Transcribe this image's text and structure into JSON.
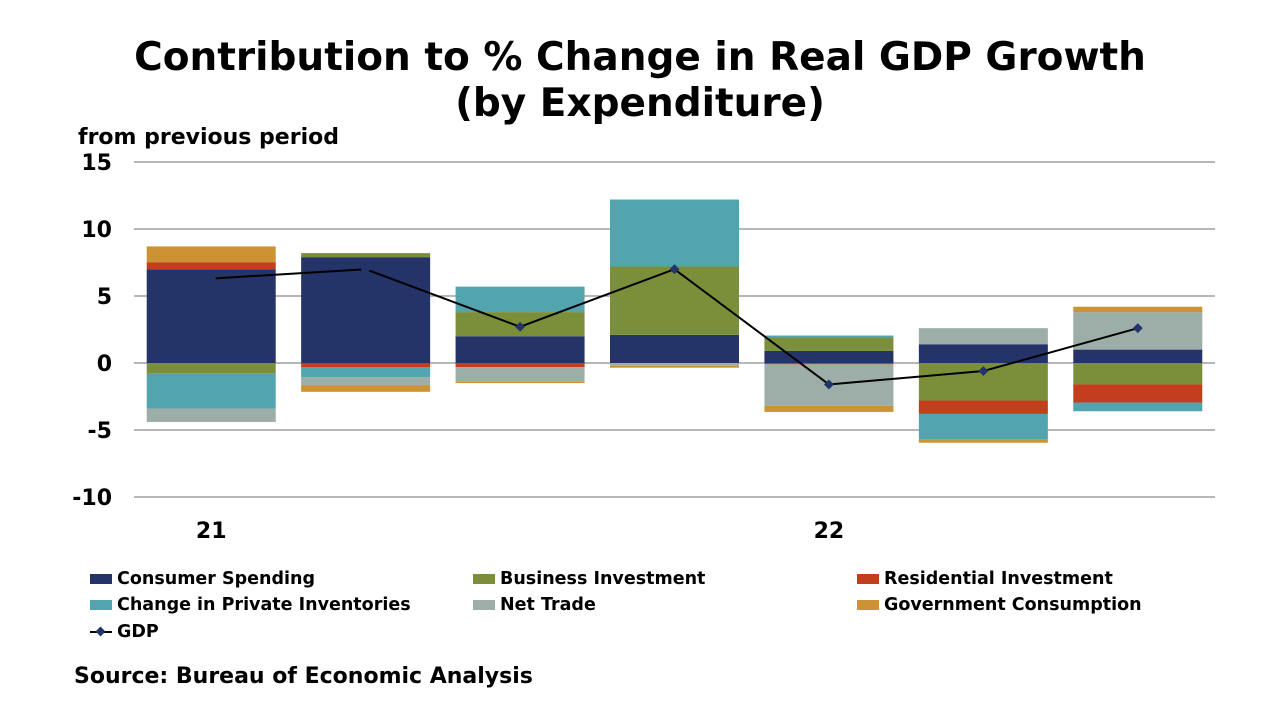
{
  "title_line1": "Contribution to % Change in Real GDP Growth",
  "title_line2": "(by Expenditure)",
  "source": "Source: Bureau of Economic Analysis",
  "chart_data": {
    "type": "bar",
    "stacked": true,
    "title": "Contribution to % Change in Real GDP Growth (by Expenditure)",
    "ylabel": "from previous period",
    "xlabel": "",
    "ylim": [
      -10,
      15
    ],
    "yticks": [
      "15",
      "10",
      "5",
      "0",
      "-5",
      "-10"
    ],
    "ytick_values": [
      15,
      10,
      5,
      0,
      -5,
      -10
    ],
    "categories": [
      "21",
      "",
      "",
      "",
      "22",
      "",
      ""
    ],
    "grid": true,
    "legend_position": "bottom",
    "series": [
      {
        "name": "Consumer Spending",
        "color": "#243469",
        "values": [
          7.0,
          7.9,
          2.0,
          2.1,
          0.9,
          1.4,
          1.0
        ]
      },
      {
        "name": "Business Investment",
        "color": "#7B8F3A",
        "values": [
          -0.8,
          0.3,
          1.8,
          5.1,
          1.0,
          -2.8,
          -1.6
        ]
      },
      {
        "name": "Residential Investment",
        "color": "#C23E1C",
        "values": [
          0.5,
          -0.3,
          -0.3,
          0.0,
          -0.1,
          -1.0,
          -1.35
        ]
      },
      {
        "name": "Change in Private Inventories",
        "color": "#52A4AE",
        "values": [
          -2.6,
          -0.75,
          1.9,
          5.0,
          0.15,
          -1.9,
          -0.65
        ]
      },
      {
        "name": "Net Trade",
        "color": "#9DADA7",
        "values": [
          -1.0,
          -0.6,
          -1.1,
          -0.2,
          -3.1,
          1.2,
          2.8
        ]
      },
      {
        "name": "Government Consumption",
        "color": "#CC9233",
        "values": [
          1.2,
          -0.5,
          -0.1,
          -0.15,
          -0.45,
          -0.25,
          0.4
        ]
      }
    ],
    "line_series": {
      "name": "GDP",
      "color": "#000000",
      "marker_color": "#243469",
      "values": [
        6.3,
        7.0,
        2.7,
        7.0,
        -1.6,
        -0.6,
        2.6
      ]
    }
  }
}
